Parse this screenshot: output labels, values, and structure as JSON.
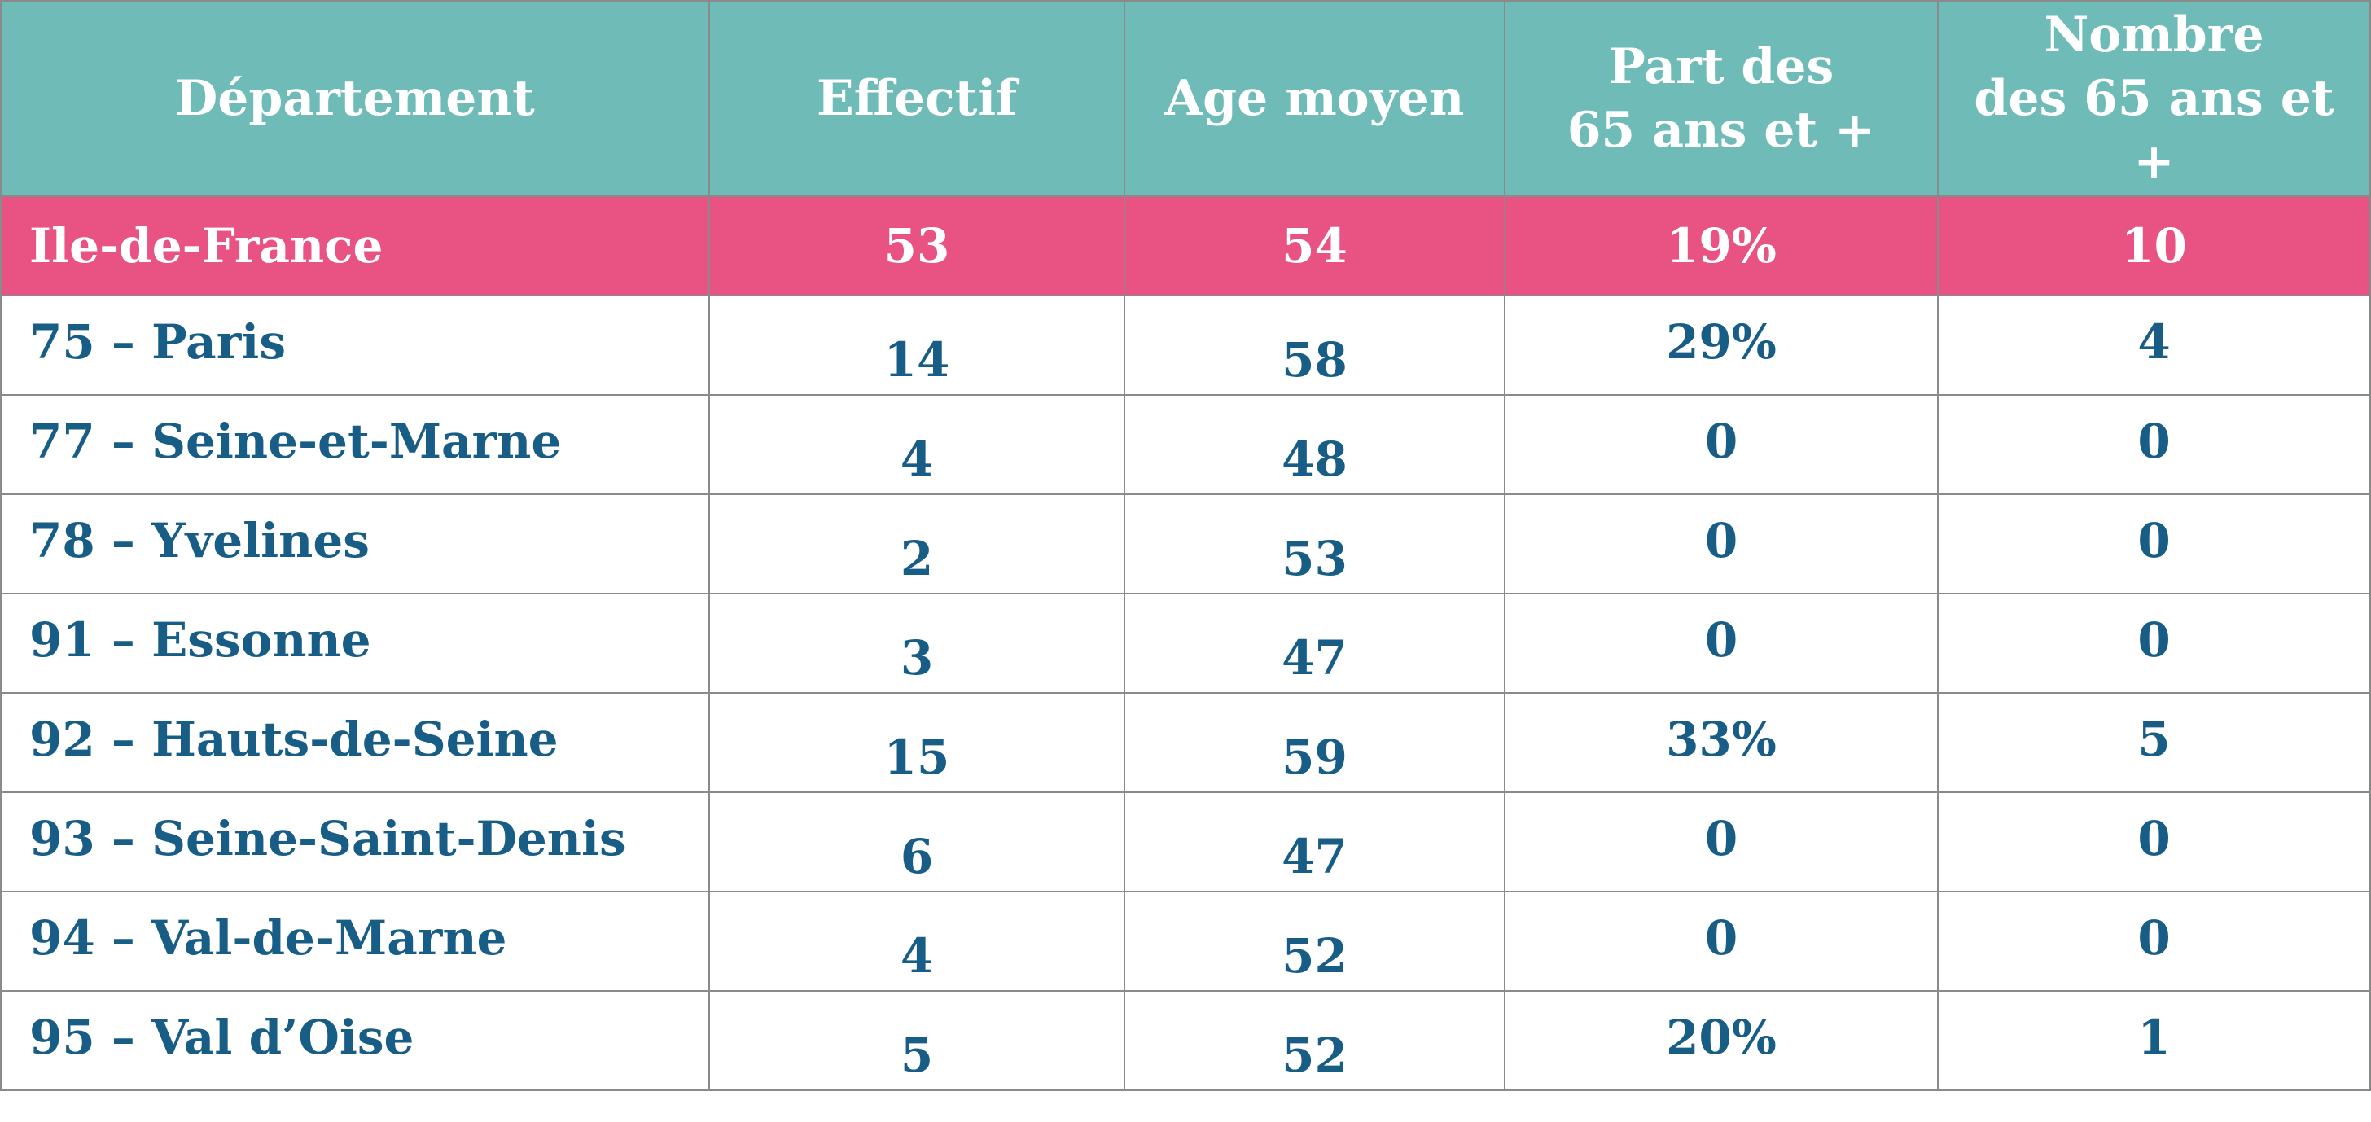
{
  "table": {
    "headers": [
      "Département",
      "Effectif",
      "Age moyen",
      "Part des\n65 ans et +",
      "Nombre\ndes 65 ans et +"
    ],
    "region_row": [
      "Ile-de-France",
      "53",
      "54",
      "19%",
      "10"
    ],
    "rows": [
      [
        "75 – Paris",
        "14",
        "58",
        "29%",
        "4"
      ],
      [
        "77 – Seine-et-Marne",
        "4",
        "48",
        "0",
        "0"
      ],
      [
        "78 – Yvelines",
        "2",
        "53",
        "0",
        "0"
      ],
      [
        "91 – Essonne",
        "3",
        "47",
        "0",
        "0"
      ],
      [
        "92 – Hauts-de-Seine",
        "15",
        "59",
        "33%",
        "5"
      ],
      [
        "93 – Seine-Saint-Denis",
        "6",
        "47",
        "0",
        "0"
      ],
      [
        "94 – Val-de-Marne",
        "4",
        "52",
        "0",
        "0"
      ],
      [
        "95 – Val d’Oise",
        "5",
        "52",
        "20%",
        "1"
      ]
    ]
  },
  "colors": {
    "header_bg": "#6fbbb7",
    "region_bg": "#e85383",
    "row_text": "#185d86",
    "grid": "#8a8a8a"
  }
}
